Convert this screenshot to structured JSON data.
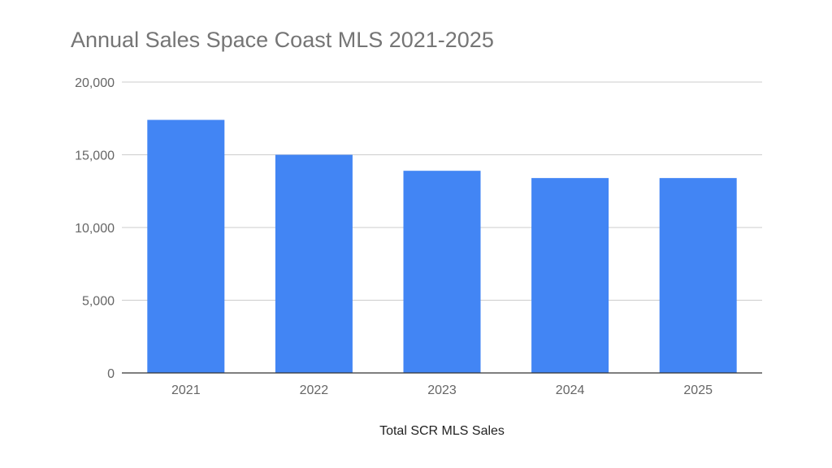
{
  "chart_data": {
    "type": "bar",
    "title": "Annual Sales Space Coast MLS 2021-2025",
    "xlabel": "Total SCR MLS Sales",
    "ylabel": "",
    "categories": [
      "2021",
      "2022",
      "2023",
      "2024",
      "2025"
    ],
    "values": [
      17400,
      15000,
      13900,
      13400,
      13400
    ],
    "ylim": [
      0,
      20000
    ],
    "yticks": [
      0,
      5000,
      10000,
      15000,
      20000
    ],
    "ytick_labels": [
      "0",
      "5,000",
      "10,000",
      "15,000",
      "20,000"
    ],
    "grid": true,
    "legend": "none",
    "bar_color": "#4285f4"
  }
}
